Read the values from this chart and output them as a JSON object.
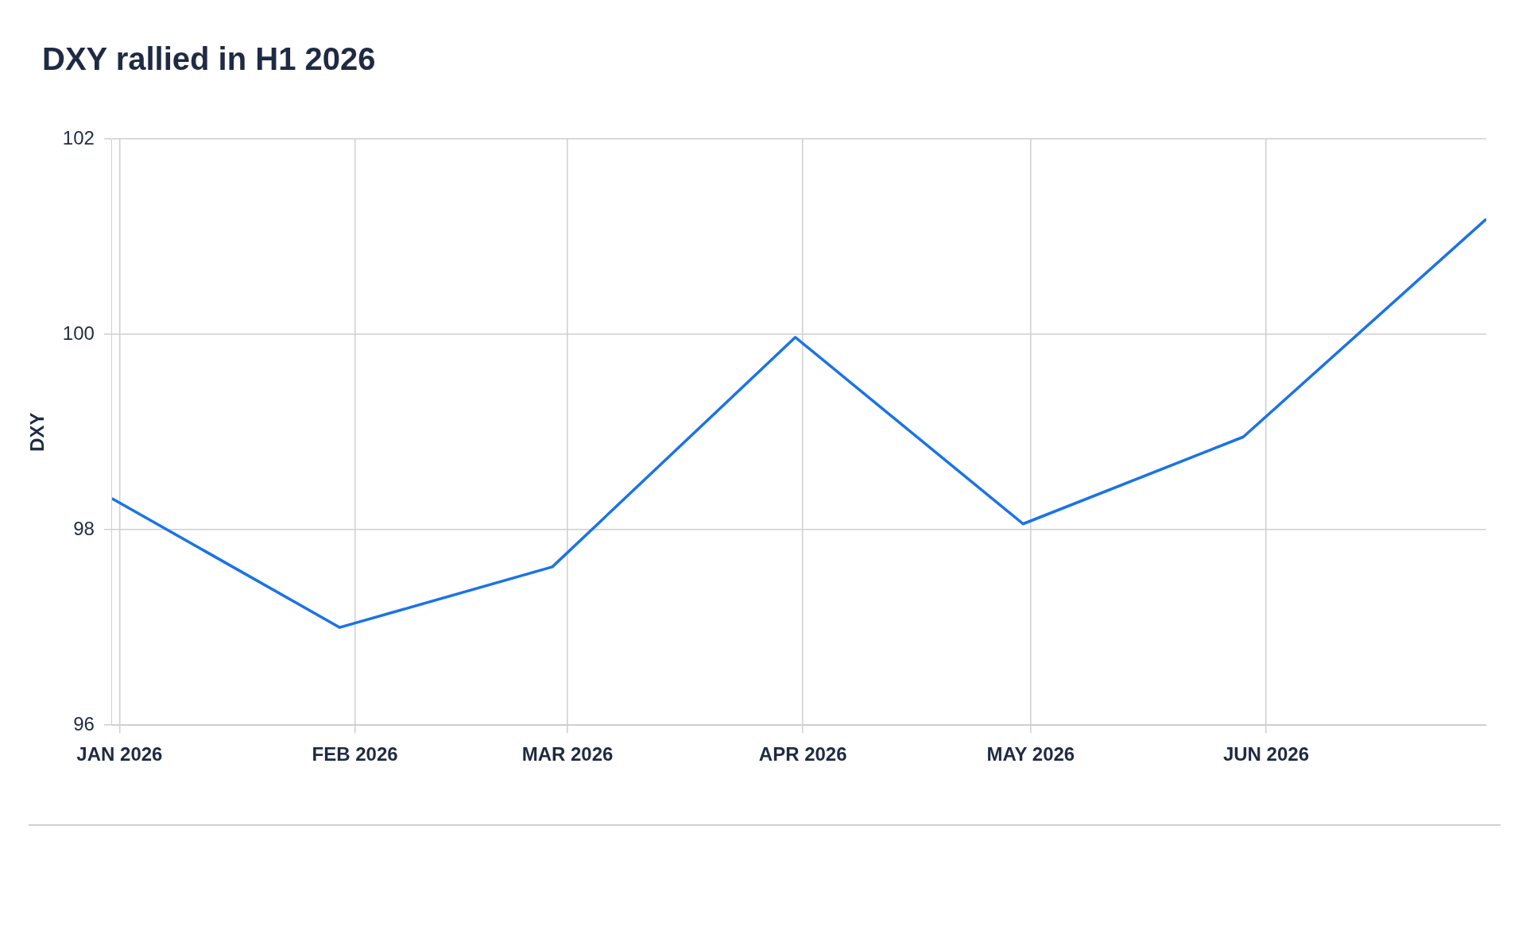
{
  "chart_data": {
    "type": "line",
    "title": "DXY rallied in H1 2026",
    "ylabel": "DXY",
    "x": [
      "2025-12-31",
      "2026-01-30",
      "2026-02-27",
      "2026-03-31",
      "2026-04-30",
      "2026-05-29",
      "2026-06-30"
    ],
    "series": [
      {
        "color": "#1a73e8",
        "values": [
          98.32,
          97.0,
          97.62,
          99.97,
          98.06,
          98.95,
          101.18
        ]
      }
    ],
    "xlim": [
      "2025-12-31",
      "2026-06-30"
    ],
    "xticks": [
      {
        "value": "2026-01-01",
        "label": "JAN 2026"
      },
      {
        "value": "2026-02-01",
        "label": "FEB 2026"
      },
      {
        "value": "2026-03-01",
        "label": "MAR 2026"
      },
      {
        "value": "2026-04-01",
        "label": "APR 2026"
      },
      {
        "value": "2026-05-01",
        "label": "MAY 2026"
      },
      {
        "value": "2026-06-01",
        "label": "JUN 2026"
      }
    ],
    "ylim": [
      96,
      102
    ],
    "yticks": [
      96,
      98,
      100,
      102
    ],
    "grid": true,
    "legend": false,
    "marker": "none",
    "line_style": "solid"
  }
}
